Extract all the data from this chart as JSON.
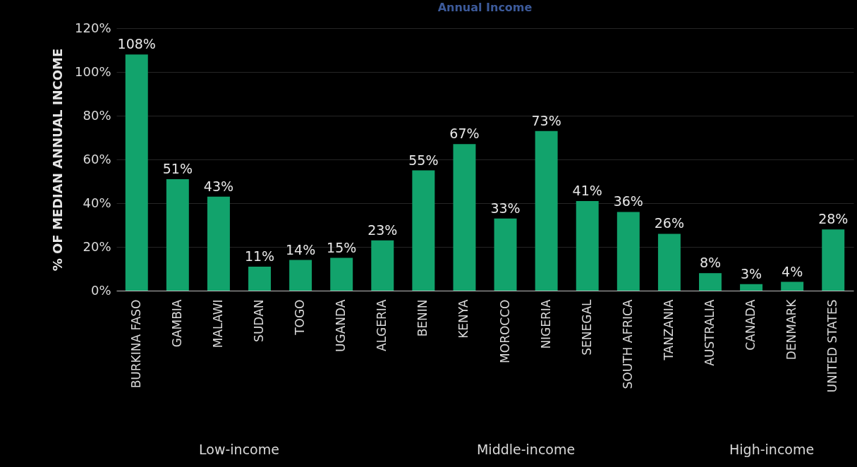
{
  "chart_data": {
    "type": "bar",
    "title": "Annual Income",
    "ylabel": "% OF MEDIAN ANNUAL INCOME",
    "categories": [
      "BURKINA FASO",
      "GAMBIA",
      "MALAWI",
      "SUDAN",
      "TOGO",
      "UGANDA",
      "ALGERIA",
      "BENIN",
      "KENYA",
      "MOROCCO",
      "NIGERIA",
      "SENEGAL",
      "SOUTH AFRICA",
      "TANZANIA",
      "AUSTRALIA",
      "CANADA",
      "DENMARK",
      "UNITED STATES"
    ],
    "values": [
      108,
      51,
      43,
      11,
      14,
      15,
      23,
      55,
      67,
      33,
      73,
      41,
      36,
      26,
      8,
      3,
      4,
      28
    ],
    "value_labels": [
      "108%",
      "51%",
      "43%",
      "11%",
      "14%",
      "15%",
      "23%",
      "55%",
      "67%",
      "33%",
      "73%",
      "41%",
      "36%",
      "26%",
      "8%",
      "3%",
      "4%",
      "28%"
    ],
    "color": "#12a36c",
    "ylim": [
      0,
      120
    ],
    "yticks": [
      {
        "value": 0,
        "label": "0%"
      },
      {
        "value": 20,
        "label": "20%"
      },
      {
        "value": 40,
        "label": "40%"
      },
      {
        "value": 60,
        "label": "60%"
      },
      {
        "value": 80,
        "label": "80%"
      },
      {
        "value": 100,
        "label": "100%"
      },
      {
        "value": 120,
        "label": "120%"
      }
    ],
    "grid": "y",
    "annotations": [
      "Low-income",
      "Middle-income",
      "High-income"
    ]
  }
}
